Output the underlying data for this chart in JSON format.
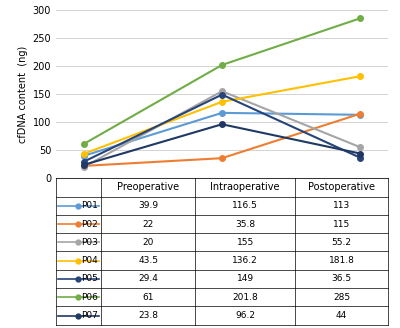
{
  "patients": [
    "P01",
    "P02",
    "P03",
    "P04",
    "P05",
    "P06",
    "P07"
  ],
  "timepoints": [
    "Preoperative",
    "Intraoperative",
    "Postoperative"
  ],
  "values": {
    "P01": [
      39.9,
      116.5,
      113
    ],
    "P02": [
      22,
      35.8,
      115
    ],
    "P03": [
      20,
      155,
      55.2
    ],
    "P04": [
      43.5,
      136.2,
      181.8
    ],
    "P05": [
      29.4,
      149,
      36.5
    ],
    "P06": [
      61,
      201.8,
      285
    ],
    "P07": [
      23.8,
      96.2,
      44
    ]
  },
  "colors": {
    "P01": "#5B9BD5",
    "P02": "#ED7D31",
    "P03": "#A5A5A5",
    "P04": "#FFC000",
    "P05": "#264478",
    "P06": "#70AD47",
    "P07": "#1F3864"
  },
  "ylabel": "cfDNA content  (ng)",
  "ylim": [
    0,
    300
  ],
  "yticks": [
    0,
    50,
    100,
    150,
    200,
    250,
    300
  ],
  "col_labels": [
    "",
    "Preoperative",
    "Intraoperative",
    "Postoperative"
  ],
  "background_color": "#FFFFFF",
  "grid_color": "#D3D3D3",
  "marker_size": 4,
  "line_width": 1.5
}
